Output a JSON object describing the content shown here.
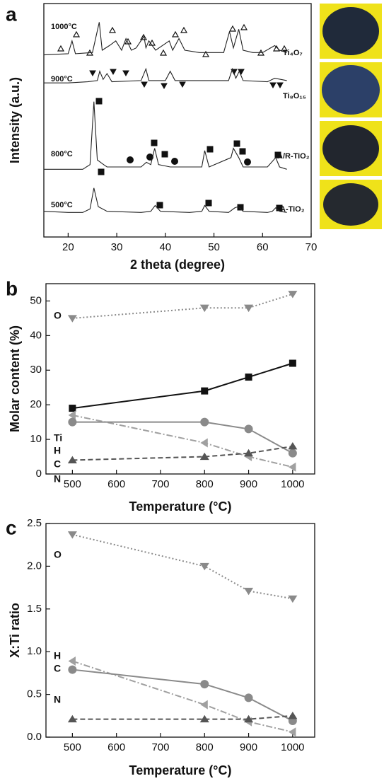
{
  "chart_data": [
    {
      "type": "line",
      "panel_label": "a",
      "x_label": "2 theta (degree)",
      "y_label": "Intensity (a.u.)",
      "xlim": [
        15,
        70
      ],
      "xticks": [
        20,
        30,
        40,
        50,
        60,
        70
      ],
      "ylim": [
        0,
        100
      ],
      "series": [
        {
          "name": "1000°C",
          "phase": "Ti₄O₇",
          "color": "#222222",
          "x": [
            15,
            20,
            20.8,
            21.5,
            25,
            26.4,
            27,
            28.5,
            29.8,
            31,
            31.9,
            33,
            34,
            35.6,
            36,
            36.6,
            38,
            40.8,
            41.5,
            42.8,
            44,
            47,
            52,
            53.2,
            54,
            55.1,
            56,
            58,
            60,
            62.5,
            63.5,
            65
          ],
          "values": [
            78,
            78.5,
            84,
            78.5,
            79,
            92,
            80,
            82,
            84,
            80,
            85,
            80,
            81,
            86,
            81,
            84,
            80,
            84,
            80,
            85,
            80,
            79,
            79,
            88,
            81,
            89,
            80,
            79,
            79,
            82,
            80,
            79
          ]
        },
        {
          "name": "900°C",
          "phase": "Ti₈O₁₅",
          "color": "#222222",
          "x": [
            15,
            20,
            24,
            26,
            26.5,
            27.2,
            28,
            29,
            35,
            36,
            36.6,
            40,
            41,
            42,
            53,
            53.8,
            54.5,
            55.2,
            56,
            61,
            62.5,
            65
          ],
          "values": [
            66,
            66,
            66.5,
            67,
            71,
            67.5,
            70,
            66.5,
            67,
            72,
            67,
            67,
            71,
            67,
            67,
            72,
            68,
            71,
            67,
            66.5,
            68,
            67
          ]
        },
        {
          "name": "800°C",
          "phase": "A/R-TiO₂",
          "color": "#222222",
          "x": [
            15,
            23,
            24.5,
            25.3,
            26,
            27.3,
            28,
            35,
            36.1,
            37,
            37.8,
            38.6,
            41,
            47.5,
            48.1,
            49,
            53.5,
            54,
            55.1,
            56,
            61,
            62.7,
            63.5,
            65
          ],
          "values": [
            29,
            29,
            31,
            58,
            33,
            31,
            30,
            30,
            32,
            31,
            38,
            31,
            30,
            30,
            37,
            30,
            34,
            38,
            34,
            30,
            30,
            34,
            30,
            29
          ]
        },
        {
          "name": "500°C",
          "phase": "A-TiO₂",
          "color": "#222222",
          "x": [
            15,
            20,
            23,
            24.5,
            25.3,
            26.2,
            28,
            35,
            37,
            37.9,
            39,
            45,
            47.5,
            48.1,
            49,
            53,
            54.3,
            55,
            56,
            61,
            62,
            62.7,
            63.5,
            65
          ],
          "values": [
            11,
            10.5,
            10.5,
            12,
            21,
            13,
            11,
            10.5,
            11,
            13.5,
            11,
            10.5,
            11,
            13.5,
            11,
            10.5,
            12.5,
            13,
            11,
            10.5,
            11,
            12.5,
            11,
            10.5
          ]
        }
      ]
    },
    {
      "type": "line",
      "panel_label": "b",
      "x_label": "Temperature (°C)",
      "y_label": "Molar content (%)",
      "x": [
        500,
        800,
        900,
        1000
      ],
      "xlim": [
        440,
        1050
      ],
      "xticks": [
        500,
        600,
        700,
        800,
        900,
        1000
      ],
      "ylim": [
        0,
        55
      ],
      "yticks": [
        0,
        10,
        20,
        30,
        40,
        50
      ],
      "series": [
        {
          "name": "O",
          "color": "#8a8a8a",
          "marker": "down",
          "line_style": "dotted",
          "values": [
            45,
            48,
            48,
            52
          ]
        },
        {
          "name": "Ti",
          "color": "#111111",
          "marker": "square",
          "line_style": "solid",
          "values": [
            19,
            24,
            28,
            32
          ]
        },
        {
          "name": "H",
          "color": "#a0a0a0",
          "marker": "left",
          "line_style": "dashdot",
          "values": [
            17,
            9,
            5,
            2
          ]
        },
        {
          "name": "C",
          "color": "#8a8a8a",
          "marker": "circle",
          "line_style": "solid",
          "values": [
            15,
            15,
            13,
            6
          ]
        },
        {
          "name": "N",
          "color": "#555555",
          "marker": "up",
          "line_style": "dashed",
          "values": [
            4,
            5,
            6,
            8
          ]
        }
      ]
    },
    {
      "type": "line",
      "panel_label": "c",
      "x_label": "Temperature (°C)",
      "y_label": "X:Ti ratio",
      "x": [
        500,
        800,
        900,
        1000
      ],
      "xlim": [
        440,
        1050
      ],
      "xticks": [
        500,
        600,
        700,
        800,
        900,
        1000
      ],
      "ylim": [
        0,
        2.5
      ],
      "yticks": [
        {
          "value": 0,
          "label": "0.0"
        },
        0.5,
        {
          "value": 1,
          "label": "1.0"
        },
        1.5,
        {
          "value": 2,
          "label": "2.0"
        },
        2.5
      ],
      "series": [
        {
          "name": "O",
          "color": "#8a8a8a",
          "marker": "down",
          "line_style": "dotted",
          "values": [
            2.37,
            2.0,
            1.71,
            1.62
          ]
        },
        {
          "name": "H",
          "color": "#a0a0a0",
          "marker": "left",
          "line_style": "dashdot",
          "values": [
            0.89,
            0.38,
            0.18,
            0.06
          ]
        },
        {
          "name": "C",
          "color": "#8a8a8a",
          "marker": "circle",
          "line_style": "solid",
          "values": [
            0.79,
            0.62,
            0.46,
            0.19
          ]
        },
        {
          "name": "N",
          "color": "#555555",
          "marker": "up",
          "line_style": "dashed",
          "values": [
            0.21,
            0.21,
            0.21,
            0.25
          ]
        }
      ]
    }
  ]
}
